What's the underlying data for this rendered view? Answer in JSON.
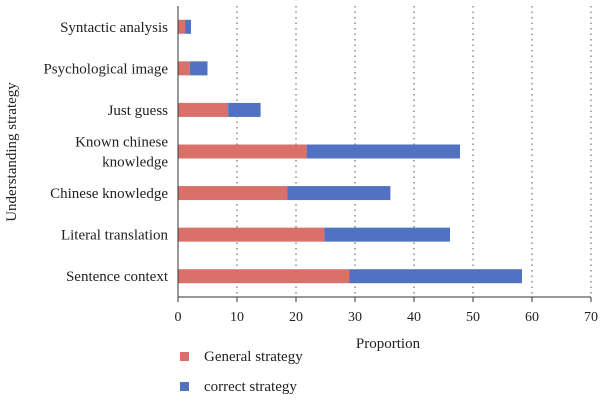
{
  "chart_data": {
    "type": "bar",
    "orientation": "horizontal",
    "stacked": true,
    "categories": [
      "Syntactic analysis",
      "Psychological image",
      "Just guess",
      "Known chinese knowledge",
      "Chinese knowledge",
      "Literal translation",
      "Sentence context"
    ],
    "category_label_lines": [
      [
        "Syntactic analysis"
      ],
      [
        "Psychological image"
      ],
      [
        "Just guess"
      ],
      [
        "Known chinese",
        "knowledge"
      ],
      [
        "Chinese knowledge"
      ],
      [
        "Literal translation"
      ],
      [
        "Sentence context"
      ]
    ],
    "series": [
      {
        "name": "General strategy",
        "color": "#d9706a",
        "values": [
          1.2,
          2.0,
          8.5,
          21.8,
          18.5,
          24.8,
          29.0
        ]
      },
      {
        "name": "correct strategy",
        "color": "#5072c0",
        "values": [
          1.0,
          3.0,
          5.5,
          26.0,
          17.5,
          21.3,
          29.3
        ]
      }
    ],
    "xlabel": "Proportion",
    "ylabel": "Understanding strategy",
    "xlim": [
      0,
      70
    ],
    "xticks": [
      0,
      10,
      20,
      30,
      40,
      50,
      60,
      70
    ],
    "grid": "vertical dotted",
    "legend_position": "bottom"
  }
}
